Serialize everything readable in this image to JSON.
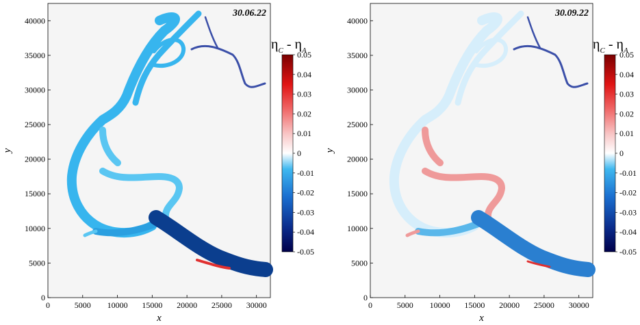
{
  "chart_data": [
    {
      "type": "heatmap",
      "annotation": "30.06.22",
      "xlabel": "x",
      "ylabel": "y",
      "xlim": [
        0,
        32000
      ],
      "ylim": [
        0,
        42500
      ],
      "xticks": [
        "0",
        "5000",
        "10000",
        "15000",
        "20000",
        "25000",
        "30000"
      ],
      "yticks": [
        "0",
        "5000",
        "10000",
        "15000",
        "20000",
        "25000",
        "30000",
        "35000",
        "40000"
      ],
      "colorbar": {
        "title_main": "η",
        "title_sub1": "C",
        "title_sep": " - ",
        "title_main2": "η",
        "title_sub2": "A",
        "range": [
          -0.05,
          0.05
        ],
        "ticks": [
          "0.05",
          "0.04",
          "0.03",
          "0.02",
          "0.01",
          "0",
          "-0.01",
          "-0.02",
          "-0.03",
          "-0.04",
          "-0.05"
        ]
      },
      "colors": {
        "upper": "#37b5ee",
        "lower": "#5ac6f2",
        "bend": "#2a9fe0",
        "downstream": "#0b3e8e"
      }
    },
    {
      "type": "heatmap",
      "annotation": "30.09.22",
      "xlabel": "x",
      "ylabel": "y",
      "xlim": [
        0,
        32000
      ],
      "ylim": [
        0,
        42500
      ],
      "xticks": [
        "0",
        "5000",
        "10000",
        "15000",
        "20000",
        "25000",
        "30000"
      ],
      "yticks": [
        "0",
        "5000",
        "10000",
        "15000",
        "20000",
        "25000",
        "30000",
        "35000",
        "40000"
      ],
      "colorbar": {
        "title_main": "η",
        "title_sub1": "C",
        "title_sep": " - ",
        "title_main2": "η",
        "title_sub2": "A",
        "range": [
          -0.05,
          0.05
        ],
        "ticks": [
          "0.05",
          "0.04",
          "0.03",
          "0.02",
          "0.01",
          "0",
          "-0.01",
          "-0.02",
          "-0.03",
          "-0.04",
          "-0.05"
        ]
      },
      "colors": {
        "upper": "#d6eefb",
        "lower": "#ef9a9a",
        "bend": "#5ab7ea",
        "downstream": "#2a7fd0"
      }
    }
  ]
}
